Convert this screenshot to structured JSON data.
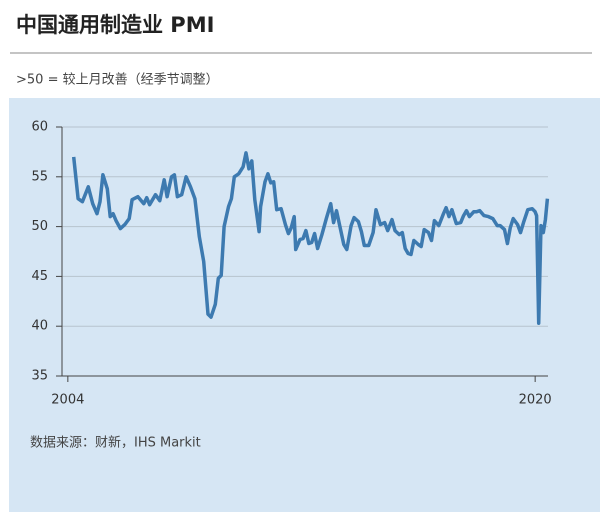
{
  "chart_data": {
    "type": "line",
    "title": "中国通用制造业 PMI",
    "subtitle": ">50 = 较上月改善（经季节调整）",
    "source": "数据来源：财新，IHS Markit",
    "x": [
      2004.2,
      2004.35,
      2004.5,
      2004.7,
      2004.85,
      2005.0,
      2005.1,
      2005.2,
      2005.35,
      2005.45,
      2005.55,
      2005.65,
      2005.8,
      2005.95,
      2006.1,
      2006.2,
      2006.4,
      2006.6,
      2006.7,
      2006.8,
      2007.0,
      2007.15,
      2007.3,
      2007.4,
      2007.55,
      2007.65,
      2007.75,
      2007.9,
      2008.05,
      2008.2,
      2008.35,
      2008.5,
      2008.65,
      2008.8,
      2008.9,
      2009.05,
      2009.15,
      2009.25,
      2009.35,
      2009.5,
      2009.6,
      2009.7,
      2009.85,
      2010.0,
      2010.1,
      2010.2,
      2010.3,
      2010.4,
      2010.55,
      2010.6,
      2010.75,
      2010.85,
      2010.95,
      2011.05,
      2011.15,
      2011.3,
      2011.45,
      2011.55,
      2011.65,
      2011.75,
      2011.8,
      2011.95,
      2012.05,
      2012.15,
      2012.25,
      2012.35,
      2012.45,
      2012.55,
      2012.7,
      2012.85,
      2013.0,
      2013.1,
      2013.2,
      2013.3,
      2013.45,
      2013.55,
      2013.7,
      2013.8,
      2013.95,
      2014.05,
      2014.15,
      2014.3,
      2014.45,
      2014.55,
      2014.7,
      2014.85,
      2014.95,
      2015.1,
      2015.2,
      2015.35,
      2015.45,
      2015.55,
      2015.65,
      2015.75,
      2015.85,
      2016.0,
      2016.1,
      2016.2,
      2016.35,
      2016.45,
      2016.55,
      2016.7,
      2016.85,
      2016.95,
      2017.05,
      2017.15,
      2017.3,
      2017.45,
      2017.55,
      2017.65,
      2017.75,
      2017.9,
      2018.0,
      2018.1,
      2018.25,
      2018.4,
      2018.55,
      2018.7,
      2018.8,
      2018.95,
      2019.05,
      2019.15,
      2019.25,
      2019.4,
      2019.5,
      2019.6,
      2019.75,
      2019.9,
      2020.0,
      2020.05,
      2020.12,
      2020.2,
      2020.28,
      2020.35,
      2020.42
    ],
    "values": [
      57.0,
      52.8,
      52.5,
      54.0,
      52.3,
      51.3,
      52.5,
      55.2,
      53.8,
      51.0,
      51.3,
      50.6,
      49.8,
      50.2,
      50.8,
      52.7,
      53.0,
      52.3,
      52.9,
      52.2,
      53.2,
      52.6,
      54.7,
      53.0,
      55.0,
      55.2,
      53.0,
      53.2,
      55.0,
      54.0,
      52.8,
      49.0,
      46.5,
      41.2,
      40.9,
      42.2,
      44.8,
      45.1,
      50.0,
      52.0,
      52.8,
      55.0,
      55.3,
      56.0,
      57.4,
      55.8,
      56.6,
      52.7,
      49.5,
      52.0,
      54.5,
      55.3,
      54.4,
      54.5,
      51.7,
      51.8,
      50.2,
      49.3,
      49.9,
      51.0,
      47.7,
      48.7,
      48.8,
      49.6,
      48.3,
      48.4,
      49.3,
      47.8,
      49.2,
      50.8,
      52.3,
      50.4,
      51.6,
      50.2,
      48.2,
      47.7,
      50.1,
      50.9,
      50.5,
      49.5,
      48.1,
      48.1,
      49.4,
      51.7,
      50.2,
      50.4,
      49.6,
      50.7,
      49.6,
      49.2,
      49.4,
      47.8,
      47.3,
      47.2,
      48.6,
      48.2,
      48.0,
      49.7,
      49.4,
      48.6,
      50.6,
      50.1,
      51.2,
      51.9,
      51.0,
      51.7,
      50.3,
      50.4,
      51.1,
      51.6,
      51.0,
      51.5,
      51.5,
      51.6,
      51.1,
      51.0,
      50.8,
      50.1,
      50.1,
      49.7,
      48.3,
      49.9,
      50.8,
      50.2,
      49.4,
      50.4,
      51.7,
      51.8,
      51.5,
      51.1,
      40.3,
      50.1,
      49.4,
      50.7,
      52.8
    ],
    "color": "#3d7ab0",
    "xlim": [
      2003.8,
      2020.44
    ],
    "xticks": [
      2004,
      2020
    ],
    "ylim": [
      35,
      60
    ],
    "yticks": [
      35,
      40,
      45,
      50,
      55,
      60
    ],
    "grid": true
  }
}
